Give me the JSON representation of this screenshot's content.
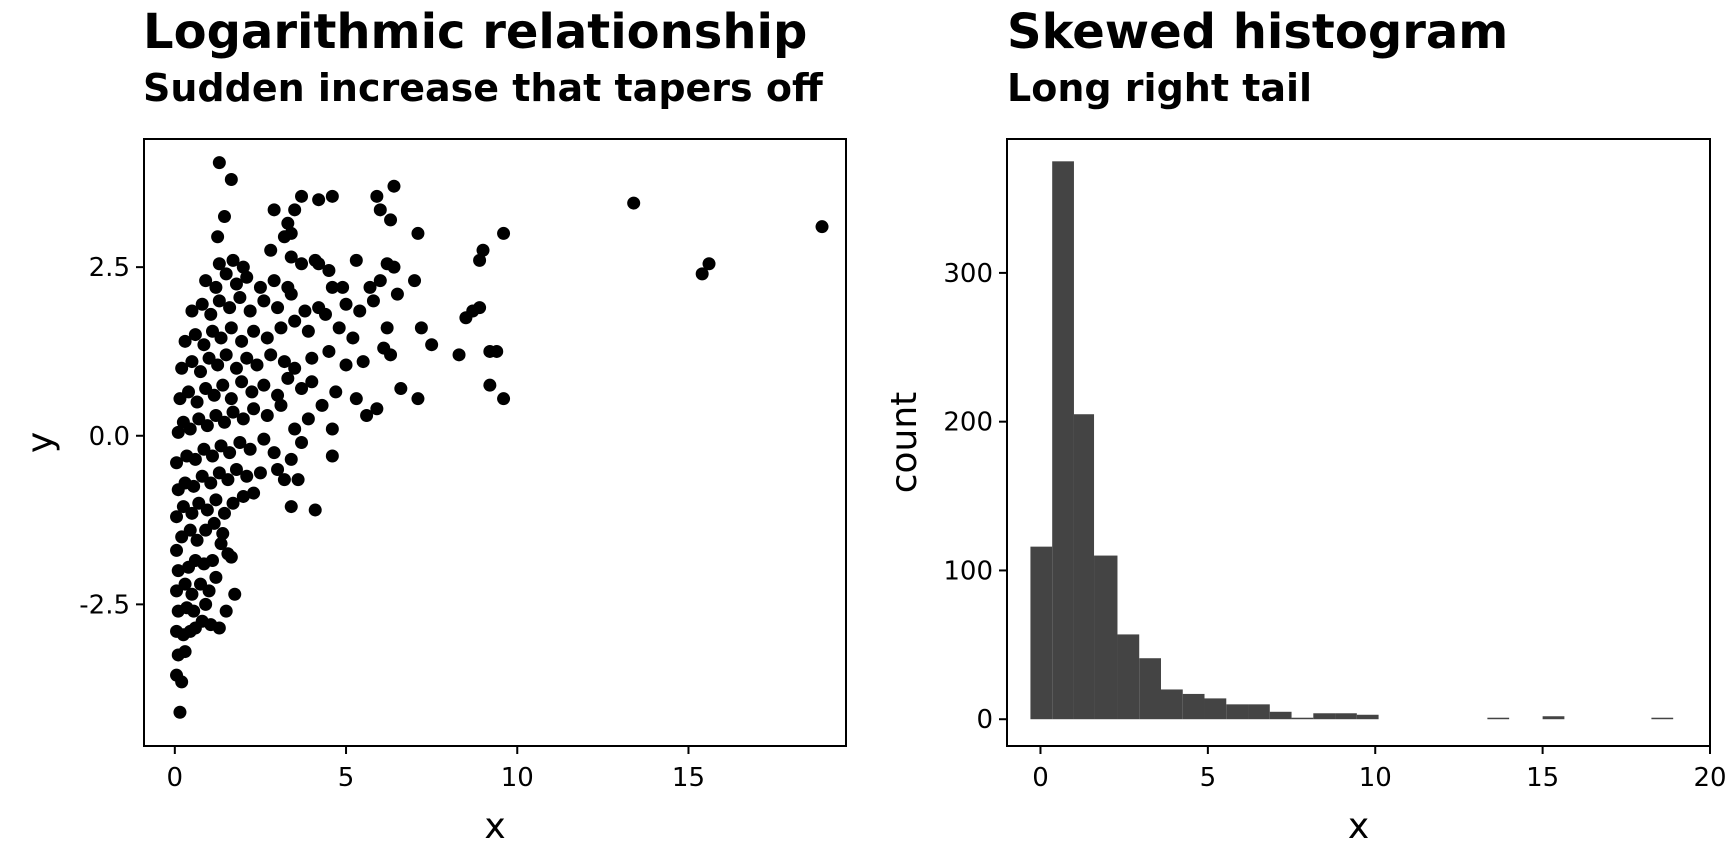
{
  "chart_data": [
    {
      "type": "scatter",
      "title": "Logarithmic relationship",
      "subtitle": "Sudden increase that tapers off",
      "xlabel": "x",
      "ylabel": "y",
      "xlim": [
        -0.9,
        19.6
      ],
      "ylim": [
        -4.6,
        4.4
      ],
      "xticks": [
        0,
        5,
        10,
        15
      ],
      "xtick_labels": [
        "0",
        "5",
        "10",
        "15"
      ],
      "yticks": [
        -2.5,
        0.0,
        2.5
      ],
      "ytick_labels": [
        "-2.5",
        "0.0",
        "2.5"
      ],
      "grid": false,
      "points": [
        [
          0.15,
          -4.1
        ],
        [
          0.05,
          -3.55
        ],
        [
          0.2,
          -3.65
        ],
        [
          0.1,
          -3.25
        ],
        [
          0.3,
          -3.2
        ],
        [
          0.05,
          -2.9
        ],
        [
          0.25,
          -2.95
        ],
        [
          0.45,
          -2.9
        ],
        [
          0.6,
          -2.85
        ],
        [
          0.8,
          -2.75
        ],
        [
          1.05,
          -2.8
        ],
        [
          1.3,
          -2.85
        ],
        [
          0.1,
          -2.6
        ],
        [
          0.35,
          -2.55
        ],
        [
          0.55,
          -2.6
        ],
        [
          0.9,
          -2.5
        ],
        [
          1.5,
          -2.6
        ],
        [
          1.75,
          -2.35
        ],
        [
          0.05,
          -2.3
        ],
        [
          0.3,
          -2.2
        ],
        [
          0.5,
          -2.35
        ],
        [
          0.75,
          -2.2
        ],
        [
          1.0,
          -2.3
        ],
        [
          1.2,
          -2.1
        ],
        [
          0.1,
          -2.0
        ],
        [
          0.4,
          -1.95
        ],
        [
          0.6,
          -1.85
        ],
        [
          0.85,
          -1.9
        ],
        [
          1.1,
          -1.85
        ],
        [
          1.35,
          -1.6
        ],
        [
          1.55,
          -1.75
        ],
        [
          1.65,
          -1.8
        ],
        [
          0.05,
          -1.7
        ],
        [
          0.2,
          -1.5
        ],
        [
          0.45,
          -1.4
        ],
        [
          0.65,
          -1.55
        ],
        [
          0.9,
          -1.4
        ],
        [
          1.15,
          -1.3
        ],
        [
          1.4,
          -1.45
        ],
        [
          0.05,
          -1.2
        ],
        [
          0.25,
          -1.05
        ],
        [
          0.5,
          -1.15
        ],
        [
          0.7,
          -1.0
        ],
        [
          0.95,
          -1.1
        ],
        [
          1.2,
          -0.95
        ],
        [
          1.45,
          -1.15
        ],
        [
          1.7,
          -1.0
        ],
        [
          2.0,
          -0.9
        ],
        [
          2.3,
          -0.85
        ],
        [
          3.4,
          -1.05
        ],
        [
          4.1,
          -1.1
        ],
        [
          0.1,
          -0.8
        ],
        [
          0.3,
          -0.7
        ],
        [
          0.55,
          -0.75
        ],
        [
          0.8,
          -0.6
        ],
        [
          1.05,
          -0.7
        ],
        [
          1.3,
          -0.55
        ],
        [
          1.55,
          -0.65
        ],
        [
          1.8,
          -0.5
        ],
        [
          2.1,
          -0.6
        ],
        [
          2.5,
          -0.55
        ],
        [
          3.0,
          -0.5
        ],
        [
          3.2,
          -0.65
        ],
        [
          3.6,
          -0.65
        ],
        [
          0.05,
          -0.4
        ],
        [
          0.35,
          -0.3
        ],
        [
          0.6,
          -0.35
        ],
        [
          0.85,
          -0.2
        ],
        [
          1.1,
          -0.3
        ],
        [
          1.35,
          -0.15
        ],
        [
          1.6,
          -0.25
        ],
        [
          1.9,
          -0.1
        ],
        [
          2.2,
          -0.2
        ],
        [
          2.6,
          -0.05
        ],
        [
          2.9,
          -0.25
        ],
        [
          3.4,
          -0.35
        ],
        [
          3.7,
          -0.1
        ],
        [
          4.6,
          -0.3
        ],
        [
          0.1,
          0.05
        ],
        [
          0.25,
          0.2
        ],
        [
          0.45,
          0.1
        ],
        [
          0.7,
          0.25
        ],
        [
          0.95,
          0.15
        ],
        [
          1.2,
          0.3
        ],
        [
          1.45,
          0.2
        ],
        [
          1.7,
          0.35
        ],
        [
          2.0,
          0.25
        ],
        [
          2.3,
          0.4
        ],
        [
          2.7,
          0.3
        ],
        [
          3.1,
          0.45
        ],
        [
          3.5,
          0.1
        ],
        [
          3.9,
          0.25
        ],
        [
          4.3,
          0.45
        ],
        [
          4.6,
          0.1
        ],
        [
          0.15,
          0.55
        ],
        [
          0.4,
          0.65
        ],
        [
          0.65,
          0.5
        ],
        [
          0.9,
          0.7
        ],
        [
          1.15,
          0.6
        ],
        [
          1.4,
          0.75
        ],
        [
          1.65,
          0.55
        ],
        [
          1.95,
          0.8
        ],
        [
          2.25,
          0.65
        ],
        [
          2.6,
          0.75
        ],
        [
          3.0,
          0.6
        ],
        [
          3.3,
          0.85
        ],
        [
          3.7,
          0.7
        ],
        [
          4.0,
          0.8
        ],
        [
          4.7,
          0.65
        ],
        [
          5.3,
          0.55
        ],
        [
          5.6,
          0.3
        ],
        [
          5.9,
          0.4
        ],
        [
          0.2,
          1.0
        ],
        [
          0.5,
          1.1
        ],
        [
          0.75,
          0.95
        ],
        [
          1.0,
          1.15
        ],
        [
          1.25,
          1.05
        ],
        [
          1.5,
          1.2
        ],
        [
          1.8,
          1.0
        ],
        [
          2.1,
          1.15
        ],
        [
          2.4,
          1.05
        ],
        [
          2.8,
          1.2
        ],
        [
          3.2,
          1.1
        ],
        [
          3.5,
          1.0
        ],
        [
          4.0,
          1.15
        ],
        [
          4.5,
          1.25
        ],
        [
          5.0,
          1.05
        ],
        [
          5.5,
          1.1
        ],
        [
          6.6,
          0.7
        ],
        [
          7.1,
          0.55
        ],
        [
          0.3,
          1.4
        ],
        [
          0.6,
          1.5
        ],
        [
          0.85,
          1.35
        ],
        [
          1.1,
          1.55
        ],
        [
          1.35,
          1.45
        ],
        [
          1.65,
          1.6
        ],
        [
          1.95,
          1.4
        ],
        [
          2.3,
          1.55
        ],
        [
          2.7,
          1.45
        ],
        [
          3.1,
          1.6
        ],
        [
          3.5,
          1.7
        ],
        [
          3.9,
          1.55
        ],
        [
          4.4,
          1.8
        ],
        [
          4.8,
          1.6
        ],
        [
          5.2,
          1.45
        ],
        [
          6.1,
          1.3
        ],
        [
          6.3,
          1.2
        ],
        [
          7.5,
          1.35
        ],
        [
          8.3,
          1.2
        ],
        [
          9.2,
          1.25
        ],
        [
          9.4,
          1.25
        ],
        [
          9.2,
          0.75
        ],
        [
          9.6,
          0.55
        ],
        [
          0.5,
          1.85
        ],
        [
          0.8,
          1.95
        ],
        [
          1.05,
          1.8
        ],
        [
          1.3,
          2.0
        ],
        [
          1.6,
          1.9
        ],
        [
          1.9,
          2.05
        ],
        [
          2.2,
          1.85
        ],
        [
          2.6,
          2.0
        ],
        [
          3.0,
          1.9
        ],
        [
          3.4,
          2.1
        ],
        [
          3.8,
          1.85
        ],
        [
          4.2,
          1.9
        ],
        [
          4.6,
          2.2
        ],
        [
          5.0,
          1.95
        ],
        [
          5.4,
          1.85
        ],
        [
          5.8,
          2.0
        ],
        [
          6.2,
          1.6
        ],
        [
          6.5,
          2.1
        ],
        [
          7.2,
          1.6
        ],
        [
          8.5,
          1.75
        ],
        [
          8.7,
          1.85
        ],
        [
          8.9,
          1.9
        ],
        [
          0.9,
          2.3
        ],
        [
          1.2,
          2.2
        ],
        [
          1.5,
          2.4
        ],
        [
          1.8,
          2.25
        ],
        [
          2.1,
          2.35
        ],
        [
          2.5,
          2.2
        ],
        [
          2.9,
          2.3
        ],
        [
          3.3,
          2.2
        ],
        [
          3.7,
          2.55
        ],
        [
          4.1,
          2.6
        ],
        [
          4.5,
          2.45
        ],
        [
          4.9,
          2.2
        ],
        [
          5.3,
          2.6
        ],
        [
          5.7,
          2.2
        ],
        [
          6.0,
          2.3
        ],
        [
          6.4,
          2.5
        ],
        [
          7.0,
          2.3
        ],
        [
          8.9,
          2.6
        ],
        [
          9.0,
          2.75
        ],
        [
          1.3,
          2.55
        ],
        [
          1.7,
          2.6
        ],
        [
          2.0,
          2.5
        ],
        [
          2.8,
          2.75
        ],
        [
          3.2,
          2.95
        ],
        [
          3.4,
          2.65
        ],
        [
          4.2,
          2.55
        ],
        [
          6.2,
          2.55
        ],
        [
          1.25,
          2.95
        ],
        [
          1.45,
          3.25
        ],
        [
          2.9,
          3.35
        ],
        [
          3.3,
          3.15
        ],
        [
          3.4,
          3.0
        ],
        [
          3.5,
          3.35
        ],
        [
          3.7,
          3.55
        ],
        [
          4.2,
          3.5
        ],
        [
          4.6,
          3.55
        ],
        [
          6.0,
          3.35
        ],
        [
          5.9,
          3.55
        ],
        [
          6.3,
          3.2
        ],
        [
          7.1,
          3.0
        ],
        [
          9.6,
          3.0
        ],
        [
          6.4,
          3.7
        ],
        [
          1.65,
          3.8
        ],
        [
          1.3,
          4.05
        ],
        [
          13.4,
          3.45
        ],
        [
          15.4,
          2.4
        ],
        [
          15.6,
          2.55
        ],
        [
          18.9,
          3.1
        ]
      ]
    },
    {
      "type": "bar",
      "subtype": "histogram",
      "title": "Skewed histogram",
      "subtitle": "Long right tail",
      "xlabel": "x",
      "ylabel": "count",
      "xlim": [
        -1.0,
        20.0
      ],
      "ylim": [
        -18,
        390
      ],
      "xticks": [
        0,
        5,
        10,
        15,
        20
      ],
      "xtick_labels": [
        "0",
        "5",
        "10",
        "15",
        "20"
      ],
      "yticks": [
        0,
        100,
        200,
        300
      ],
      "ytick_labels": [
        "0",
        "100",
        "200",
        "300"
      ],
      "grid": false,
      "fill": "#444444",
      "bins": [
        {
          "x0": -0.3,
          "x1": 0.35,
          "count": 116
        },
        {
          "x0": 0.35,
          "x1": 1.0,
          "count": 375
        },
        {
          "x0": 1.0,
          "x1": 1.6,
          "count": 205
        },
        {
          "x0": 1.6,
          "x1": 2.3,
          "count": 110
        },
        {
          "x0": 2.3,
          "x1": 2.95,
          "count": 57
        },
        {
          "x0": 2.95,
          "x1": 3.6,
          "count": 41
        },
        {
          "x0": 3.6,
          "x1": 4.25,
          "count": 20
        },
        {
          "x0": 4.25,
          "x1": 4.9,
          "count": 17
        },
        {
          "x0": 4.9,
          "x1": 5.55,
          "count": 14
        },
        {
          "x0": 5.55,
          "x1": 6.2,
          "count": 10
        },
        {
          "x0": 6.2,
          "x1": 6.85,
          "count": 10
        },
        {
          "x0": 6.85,
          "x1": 7.5,
          "count": 5
        },
        {
          "x0": 7.5,
          "x1": 8.15,
          "count": 1
        },
        {
          "x0": 8.15,
          "x1": 8.8,
          "count": 4
        },
        {
          "x0": 8.8,
          "x1": 9.45,
          "count": 4
        },
        {
          "x0": 9.45,
          "x1": 10.1,
          "count": 3
        },
        {
          "x0": 13.35,
          "x1": 14.0,
          "count": 1
        },
        {
          "x0": 15.0,
          "x1": 15.65,
          "count": 2
        },
        {
          "x0": 18.25,
          "x1": 18.9,
          "count": 1
        }
      ]
    }
  ]
}
